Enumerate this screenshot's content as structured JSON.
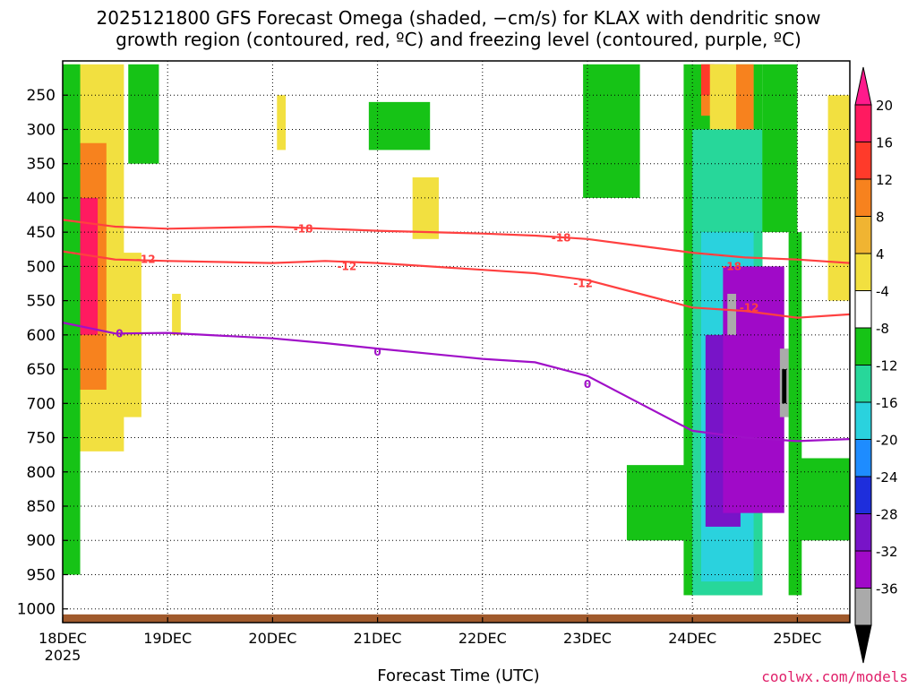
{
  "title_line1": "2025121800 GFS Forecast Omega (shaded, −cm/s) for KLAX with dendritic snow",
  "title_line2": "growth region (contoured, red, ºC) and freezing level (contoured, purple, ºC)",
  "watermark": "coolwx.com/models",
  "chart_data": {
    "type": "heatmap",
    "title": "2025121800 GFS Forecast Omega (shaded, −cm/s) for KLAX with dendritic snow growth region (contoured, red, ºC) and freezing level (contoured, purple, ºC)",
    "xlabel": "Forecast Time (UTC)",
    "ylabel": "",
    "x_ticks": [
      "18DEC",
      "19DEC",
      "20DEC",
      "21DEC",
      "22DEC",
      "23DEC",
      "24DEC",
      "25DEC"
    ],
    "x_tick_values": [
      0,
      24,
      48,
      72,
      96,
      120,
      144,
      168
    ],
    "x_sublabel": "2025",
    "xlim": [
      0,
      180
    ],
    "y_ticks": [
      250,
      300,
      350,
      400,
      450,
      500,
      550,
      600,
      650,
      700,
      750,
      800,
      850,
      900,
      950,
      1000
    ],
    "ylim": [
      1020,
      200
    ],
    "grid": true,
    "colorbar": {
      "labels": [
        "20",
        "16",
        "12",
        "8",
        "4",
        "-4",
        "-8",
        "-12",
        "-16",
        "-20",
        "-24",
        "-28",
        "-32",
        "-36"
      ],
      "colors": [
        "#ff1a60",
        "#ff3a2a",
        "#f7821e",
        "#f0b432",
        "#f2e040",
        "#ffffff",
        "#16c316",
        "#27d79a",
        "#2ad2de",
        "#1e8cff",
        "#1e2edc",
        "#7814c8",
        "#a00ac8",
        "#aaaaaa"
      ],
      "arrow_top_color": "#ff1a8c",
      "arrow_bottom_color": "#000000"
    },
    "contours": [
      {
        "name": "-18",
        "color": "#ff4040",
        "points": [
          [
            0,
            432
          ],
          [
            12,
            442
          ],
          [
            24,
            445
          ],
          [
            48,
            442
          ],
          [
            60,
            445
          ],
          [
            72,
            448
          ],
          [
            96,
            452
          ],
          [
            108,
            455
          ],
          [
            120,
            460
          ],
          [
            132,
            470
          ],
          [
            144,
            480
          ],
          [
            156,
            487
          ],
          [
            168,
            490
          ],
          [
            180,
            495
          ]
        ]
      },
      {
        "name": "-12",
        "color": "#ff4040",
        "points": [
          [
            0,
            478
          ],
          [
            12,
            490
          ],
          [
            24,
            492
          ],
          [
            48,
            495
          ],
          [
            60,
            492
          ],
          [
            72,
            495
          ],
          [
            96,
            505
          ],
          [
            108,
            510
          ],
          [
            120,
            520
          ],
          [
            132,
            540
          ],
          [
            144,
            560
          ],
          [
            156,
            565
          ],
          [
            168,
            575
          ],
          [
            180,
            570
          ]
        ]
      },
      {
        "name": "0",
        "color": "#a010c8",
        "points": [
          [
            0,
            582
          ],
          [
            12,
            598
          ],
          [
            24,
            597
          ],
          [
            48,
            605
          ],
          [
            60,
            612
          ],
          [
            72,
            620
          ],
          [
            96,
            635
          ],
          [
            108,
            640
          ],
          [
            120,
            660
          ],
          [
            132,
            700
          ],
          [
            144,
            740
          ],
          [
            156,
            750
          ],
          [
            168,
            755
          ],
          [
            180,
            752
          ]
        ]
      }
    ],
    "contour_labels": [
      {
        "text": "-18",
        "x": 55,
        "y": 445,
        "color": "#ff4040"
      },
      {
        "text": "-12",
        "x": 19,
        "y": 490,
        "color": "#ff4040"
      },
      {
        "text": "-12",
        "x": 65,
        "y": 500,
        "color": "#ff4040"
      },
      {
        "text": "-18",
        "x": 114,
        "y": 458,
        "color": "#ff4040"
      },
      {
        "text": "-12",
        "x": 119,
        "y": 525,
        "color": "#ff4040"
      },
      {
        "text": "-18",
        "x": 153,
        "y": 500,
        "color": "#ff4040"
      },
      {
        "text": "-12",
        "x": 157,
        "y": 560,
        "color": "#ff4040"
      },
      {
        "text": "0",
        "x": 13,
        "y": 598,
        "color": "#a010c8"
      },
      {
        "text": "0",
        "x": 72,
        "y": 625,
        "color": "#a010c8"
      },
      {
        "text": "0",
        "x": 120,
        "y": 672,
        "color": "#a010c8"
      }
    ],
    "regions": [
      {
        "color": "#f2e040",
        "x": [
          0,
          14
        ],
        "y": [
          205,
          770
        ]
      },
      {
        "color": "#f7821e",
        "x": [
          2,
          10
        ],
        "y": [
          320,
          680
        ]
      },
      {
        "color": "#ff1a60",
        "x": [
          4,
          8
        ],
        "y": [
          400,
          600
        ]
      },
      {
        "color": "#16c316",
        "x": [
          0,
          4
        ],
        "y": [
          205,
          950
        ]
      },
      {
        "color": "#f2e040",
        "x": [
          13,
          18
        ],
        "y": [
          480,
          720
        ]
      },
      {
        "color": "#16c316",
        "x": [
          15,
          22
        ],
        "y": [
          205,
          350
        ]
      },
      {
        "color": "#f2e040",
        "x": [
          25,
          27
        ],
        "y": [
          540,
          600
        ]
      },
      {
        "color": "#f2e040",
        "x": [
          49,
          51
        ],
        "y": [
          250,
          330
        ]
      },
      {
        "color": "#16c316",
        "x": [
          70,
          84
        ],
        "y": [
          260,
          330
        ]
      },
      {
        "color": "#f2e040",
        "x": [
          80,
          86
        ],
        "y": [
          370,
          460
        ]
      },
      {
        "color": "#16c316",
        "x": [
          119,
          132
        ],
        "y": [
          205,
          400
        ]
      },
      {
        "color": "#16c316",
        "x": [
          129,
          144
        ],
        "y": [
          790,
          900
        ]
      },
      {
        "color": "#16c316",
        "x": [
          142,
          160
        ],
        "y": [
          205,
          980
        ]
      },
      {
        "color": "#27d79a",
        "x": [
          144,
          160
        ],
        "y": [
          300,
          980
        ]
      },
      {
        "color": "#2ad2de",
        "x": [
          146,
          158
        ],
        "y": [
          450,
          960
        ]
      },
      {
        "color": "#7814c8",
        "x": [
          147,
          155
        ],
        "y": [
          600,
          880
        ]
      },
      {
        "color": "#a00ac8",
        "x": [
          151,
          165
        ],
        "y": [
          500,
          860
        ]
      },
      {
        "color": "#aaaaaa",
        "x": [
          152,
          154
        ],
        "y": [
          540,
          600
        ]
      },
      {
        "color": "#aaaaaa",
        "x": [
          164,
          166
        ],
        "y": [
          620,
          720
        ]
      },
      {
        "color": "#000000",
        "x": [
          164.5,
          165.5
        ],
        "y": [
          650,
          700
        ]
      },
      {
        "color": "#f7821e",
        "x": [
          146,
          152
        ],
        "y": [
          205,
          280
        ]
      },
      {
        "color": "#ff3a2a",
        "x": [
          146,
          149
        ],
        "y": [
          205,
          250
        ]
      },
      {
        "color": "#f2e040",
        "x": [
          148,
          158
        ],
        "y": [
          205,
          300
        ]
      },
      {
        "color": "#f7821e",
        "x": [
          154,
          158
        ],
        "y": [
          205,
          300
        ]
      },
      {
        "color": "#16c316",
        "x": [
          160,
          168
        ],
        "y": [
          205,
          450
        ]
      },
      {
        "color": "#16c316",
        "x": [
          168,
          180
        ],
        "y": [
          780,
          900
        ]
      },
      {
        "color": "#f2e040",
        "x": [
          175,
          180
        ],
        "y": [
          250,
          550
        ]
      },
      {
        "color": "#16c316",
        "x": [
          166,
          169
        ],
        "y": [
          450,
          980
        ]
      }
    ],
    "ground_color": "#a05a2c"
  }
}
